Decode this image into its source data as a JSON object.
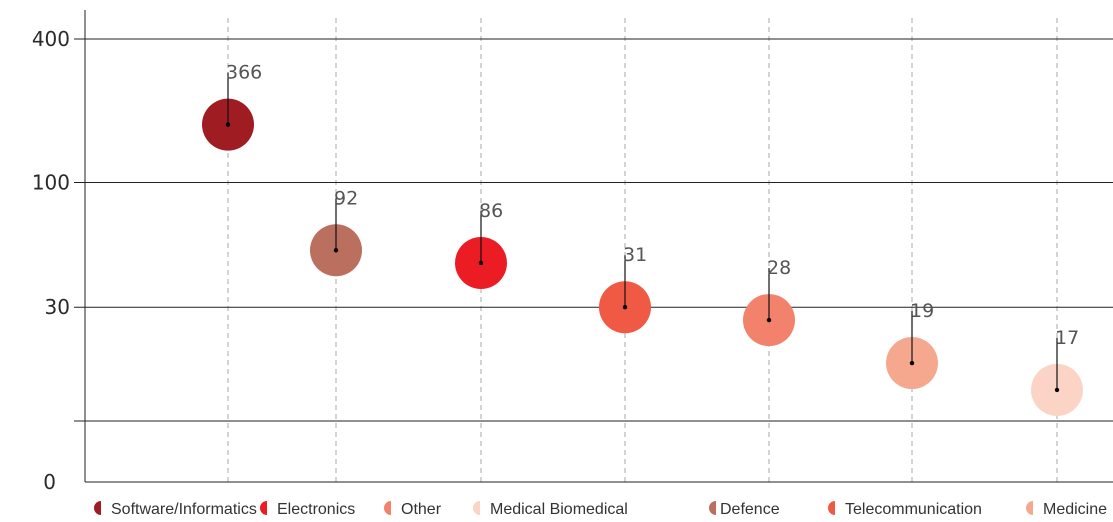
{
  "chart_data": {
    "type": "scatter",
    "marker": "bubble",
    "scale": "log",
    "ylim": [
      8,
      400
    ],
    "yticks": [
      {
        "value": 400,
        "label": "400"
      },
      {
        "value": 100,
        "label": "100"
      },
      {
        "value": 30,
        "label": "30"
      },
      {
        "value": 10,
        "label": ""
      }
    ],
    "zero_label": "0",
    "grid": {
      "horizontal": true,
      "vertical_dashed": true
    },
    "legend_position": "bottom",
    "points": [
      {
        "name": "Software/Informatics",
        "value": 366,
        "plotted": 175,
        "color": "#9f1c22",
        "label": "366"
      },
      {
        "name": "Electronics",
        "value": 92,
        "plotted": 52,
        "color": "#bb6f5f",
        "label": "92"
      },
      {
        "name": "Other",
        "value": 86,
        "plotted": 46,
        "color": "#ec1c24",
        "label": "86"
      },
      {
        "name": "Medical Biomedical",
        "value": 31,
        "plotted": 30,
        "color": "#f05a44",
        "label": "31"
      },
      {
        "name": "Defence",
        "value": 28,
        "plotted": 26.5,
        "color": "#f2826b",
        "label": "28"
      },
      {
        "name": "Telecommunication",
        "value": 19,
        "plotted": 17.5,
        "color": "#f6a88f",
        "label": "19"
      },
      {
        "name": "Medicine",
        "value": 17,
        "plotted": 13.5,
        "color": "#fbd4c6",
        "label": "17"
      }
    ],
    "legend": [
      {
        "label": "Software/Informatics",
        "color": "#9f1c22"
      },
      {
        "label": "Electronics",
        "color": "#ec1c24"
      },
      {
        "label": "Other",
        "color": "#f2826b"
      },
      {
        "label": "Medical Biomedical",
        "color": "#fbd4c6"
      },
      {
        "label": "Defence",
        "color": "#bb6f5f"
      },
      {
        "label": "Telecommunication",
        "color": "#f05a44"
      },
      {
        "label": "Medicine",
        "color": "#f6a88f"
      }
    ]
  }
}
